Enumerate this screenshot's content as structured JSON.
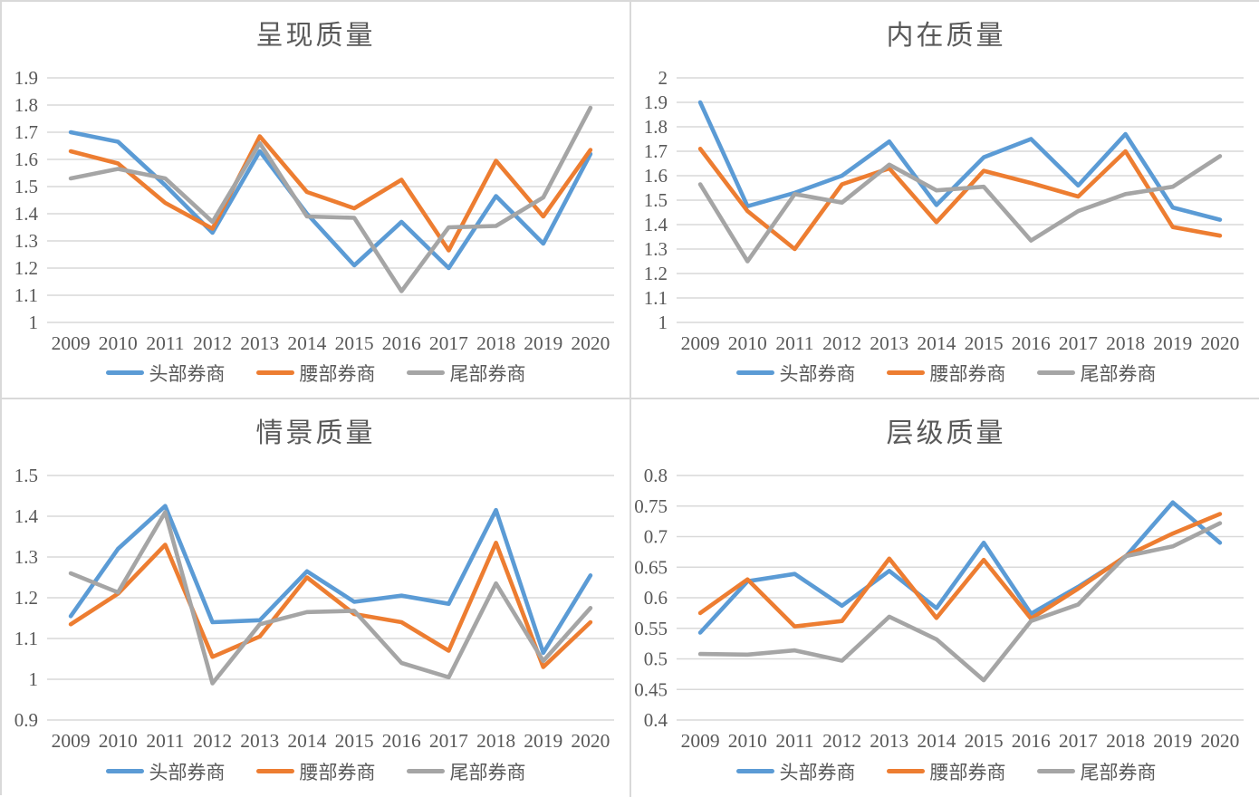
{
  "page": {
    "background": "#ffffff",
    "divider_color": "#d9d9d9"
  },
  "colors": {
    "series_blue": "#5B9BD5",
    "series_orange": "#ED7D31",
    "series_gray": "#A5A5A5",
    "gridline": "#D9D9D9",
    "axis_text": "#595959",
    "title_text": "#595959"
  },
  "series_names": [
    "头部券商",
    "腰部券商",
    "尾部券商"
  ],
  "years": [
    "2009",
    "2010",
    "2011",
    "2012",
    "2013",
    "2014",
    "2015",
    "2016",
    "2017",
    "2018",
    "2019",
    "2020"
  ],
  "chart_data": [
    {
      "type": "line",
      "title": "呈现质量",
      "xlabel": "",
      "ylabel": "",
      "x": [
        "2009",
        "2010",
        "2011",
        "2012",
        "2013",
        "2014",
        "2015",
        "2016",
        "2017",
        "2018",
        "2019",
        "2020"
      ],
      "ylim": [
        1,
        1.9
      ],
      "yticks": [
        1.9,
        1.8,
        1.7,
        1.6,
        1.5,
        1.4,
        1.3,
        1.2,
        1.1,
        1
      ],
      "grid": true,
      "legend_position": "bottom",
      "series": [
        {
          "name": "头部券商",
          "color": "#5B9BD5",
          "values": [
            1.7,
            1.665,
            1.505,
            1.33,
            1.63,
            1.4,
            1.21,
            1.37,
            1.2,
            1.465,
            1.29,
            1.62
          ]
        },
        {
          "name": "腰部券商",
          "color": "#ED7D31",
          "values": [
            1.63,
            1.585,
            1.44,
            1.345,
            1.685,
            1.48,
            1.42,
            1.525,
            1.265,
            1.595,
            1.39,
            1.635
          ]
        },
        {
          "name": "尾部券商",
          "color": "#A5A5A5",
          "values": [
            1.53,
            1.565,
            1.53,
            1.37,
            1.66,
            1.39,
            1.385,
            1.115,
            1.35,
            1.355,
            1.46,
            1.79
          ]
        }
      ]
    },
    {
      "type": "line",
      "title": "内在质量",
      "xlabel": "",
      "ylabel": "",
      "x": [
        "2009",
        "2010",
        "2011",
        "2012",
        "2013",
        "2014",
        "2015",
        "2016",
        "2017",
        "2018",
        "2019",
        "2020"
      ],
      "ylim": [
        1,
        2
      ],
      "yticks": [
        2,
        1.9,
        1.8,
        1.7,
        1.6,
        1.5,
        1.4,
        1.3,
        1.2,
        1.1,
        1
      ],
      "grid": true,
      "legend_position": "bottom",
      "series": [
        {
          "name": "头部券商",
          "color": "#5B9BD5",
          "values": [
            1.9,
            1.475,
            1.53,
            1.6,
            1.74,
            1.48,
            1.675,
            1.75,
            1.56,
            1.77,
            1.47,
            1.42
          ]
        },
        {
          "name": "腰部券商",
          "color": "#ED7D31",
          "values": [
            1.71,
            1.455,
            1.3,
            1.565,
            1.63,
            1.41,
            1.62,
            1.57,
            1.515,
            1.7,
            1.39,
            1.355
          ]
        },
        {
          "name": "尾部券商",
          "color": "#A5A5A5",
          "values": [
            1.565,
            1.25,
            1.525,
            1.49,
            1.645,
            1.54,
            1.555,
            1.335,
            1.455,
            1.525,
            1.555,
            1.68
          ]
        }
      ]
    },
    {
      "type": "line",
      "title": "情景质量",
      "xlabel": "",
      "ylabel": "",
      "x": [
        "2009",
        "2010",
        "2011",
        "2012",
        "2013",
        "2014",
        "2015",
        "2016",
        "2017",
        "2018",
        "2019",
        "2020"
      ],
      "ylim": [
        0.9,
        1.5
      ],
      "yticks": [
        1.5,
        1.4,
        1.3,
        1.2,
        1.1,
        1,
        0.9
      ],
      "grid": true,
      "legend_position": "bottom",
      "series": [
        {
          "name": "头部券商",
          "color": "#5B9BD5",
          "values": [
            1.155,
            1.32,
            1.425,
            1.14,
            1.145,
            1.265,
            1.19,
            1.205,
            1.185,
            1.415,
            1.065,
            1.255
          ]
        },
        {
          "name": "腰部券商",
          "color": "#ED7D31",
          "values": [
            1.135,
            1.21,
            1.33,
            1.055,
            1.105,
            1.25,
            1.16,
            1.14,
            1.07,
            1.335,
            1.03,
            1.14
          ]
        },
        {
          "name": "尾部券商",
          "color": "#A5A5A5",
          "values": [
            1.26,
            1.213,
            1.41,
            0.99,
            1.135,
            1.165,
            1.168,
            1.04,
            1.005,
            1.235,
            1.045,
            1.175
          ]
        }
      ]
    },
    {
      "type": "line",
      "title": "层级质量",
      "xlabel": "",
      "ylabel": "",
      "x": [
        "2009",
        "2010",
        "2011",
        "2012",
        "2013",
        "2014",
        "2015",
        "2016",
        "2017",
        "2018",
        "2019",
        "2020"
      ],
      "ylim": [
        0.4,
        0.8
      ],
      "yticks": [
        0.8,
        0.75,
        0.7,
        0.65,
        0.6,
        0.55,
        0.5,
        0.45,
        0.4
      ],
      "grid": true,
      "legend_position": "bottom",
      "series": [
        {
          "name": "头部券商",
          "color": "#5B9BD5",
          "values": [
            0.543,
            0.627,
            0.639,
            0.587,
            0.644,
            0.583,
            0.69,
            0.574,
            0.618,
            0.667,
            0.756,
            0.69
          ]
        },
        {
          "name": "腰部券商",
          "color": "#ED7D31",
          "values": [
            0.575,
            0.63,
            0.553,
            0.562,
            0.664,
            0.567,
            0.662,
            0.566,
            0.615,
            0.668,
            0.705,
            0.737
          ]
        },
        {
          "name": "尾部券商",
          "color": "#A5A5A5",
          "values": [
            0.508,
            0.507,
            0.514,
            0.497,
            0.569,
            0.532,
            0.465,
            0.562,
            0.589,
            0.668,
            0.684,
            0.722
          ]
        }
      ]
    }
  ]
}
